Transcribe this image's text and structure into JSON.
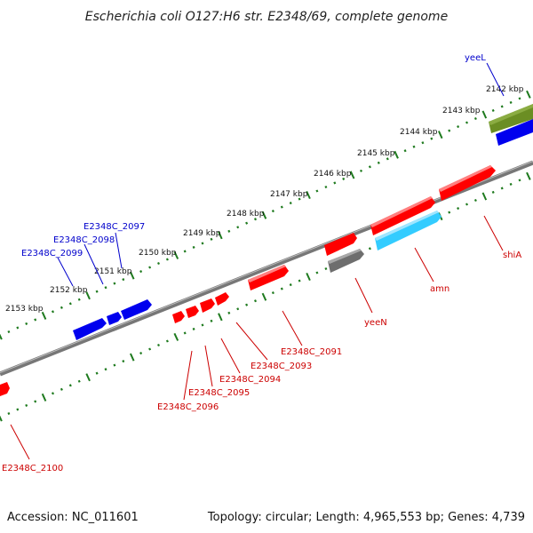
{
  "title": "Escherichia coli O127:H6 str. E2348/69, complete genome",
  "footer": {
    "accession": "Accession: NC_011601",
    "summary": "Topology: circular; Length: 4,965,553 bp; Genes: 4,739"
  },
  "colors": {
    "backbone": "#7f7f7f",
    "tick": "#1e7a1e",
    "red_gene": "#ff0000",
    "blue_gene": "#0000ee",
    "cyan_gene": "#33ccff",
    "gray_gene": "#6e6e6e",
    "olive_gene": "#6b8e23",
    "red_label": "#cc0000",
    "blue_label": "#0000cc"
  },
  "kbp_labels": [
    "2142 kbp",
    "2143 kbp",
    "2144 kbp",
    "2145 kbp",
    "2146 kbp",
    "2147 kbp",
    "2148 kbp",
    "2149 kbp",
    "2150 kbp",
    "2151 kbp",
    "2152 kbp",
    "2153 kbp"
  ],
  "gene_labels": {
    "top": [
      "yeeL",
      "E2348C_2097",
      "E2348C_2098",
      "E2348C_2099"
    ],
    "bottom": [
      "shiA",
      "amn",
      "yeeN",
      "E2348C_2091",
      "E2348C_2093",
      "E2348C_2094",
      "E2348C_2095",
      "E2348C_2096",
      "E2348C_2100"
    ]
  }
}
